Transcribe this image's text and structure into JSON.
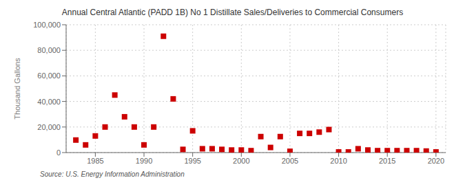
{
  "chart_data": {
    "type": "scatter",
    "title": "Annual Central Atlantic (PADD 1B) No 1 Distillate Sales/Deliveries to Commercial Consumers",
    "ylabel": "Thousand Gallons",
    "annotations": [
      "Source: U.S. Energy Information Administration"
    ],
    "x": [
      1983,
      1984,
      1985,
      1986,
      1987,
      1988,
      1989,
      1990,
      1991,
      1992,
      1993,
      1994,
      1995,
      1996,
      1997,
      1998,
      1999,
      2000,
      2001,
      2002,
      2003,
      2004,
      2005,
      2006,
      2007,
      2008,
      2009,
      2010,
      2011,
      2012,
      2013,
      2014,
      2015,
      2016,
      2017,
      2018,
      2019,
      2020
    ],
    "values": [
      9800,
      6000,
      13000,
      20000,
      45000,
      28000,
      20000,
      6000,
      20000,
      91000,
      42000,
      2500,
      17000,
      3000,
      3000,
      2500,
      2000,
      2000,
      1500,
      12500,
      4000,
      12500,
      1000,
      15000,
      15000,
      16000,
      18000,
      500,
      500,
      3000,
      2000,
      1500,
      1500,
      1500,
      1500,
      1500,
      1200,
      500
    ],
    "color": "#cc0000",
    "marker": "square",
    "xlim": [
      1982,
      2021
    ],
    "xticks": [
      1985,
      1990,
      1995,
      2000,
      2005,
      2010,
      2015,
      2020
    ],
    "ylim": [
      0,
      100000
    ],
    "yticks": [
      0,
      {
        "value": 20000,
        "label": "20,000"
      },
      {
        "value": 40000,
        "label": "40,000"
      },
      {
        "value": 60000,
        "label": "60,000"
      },
      {
        "value": 80000,
        "label": "80,000"
      },
      {
        "value": 100000,
        "label": "100,000"
      }
    ],
    "grid": true
  }
}
